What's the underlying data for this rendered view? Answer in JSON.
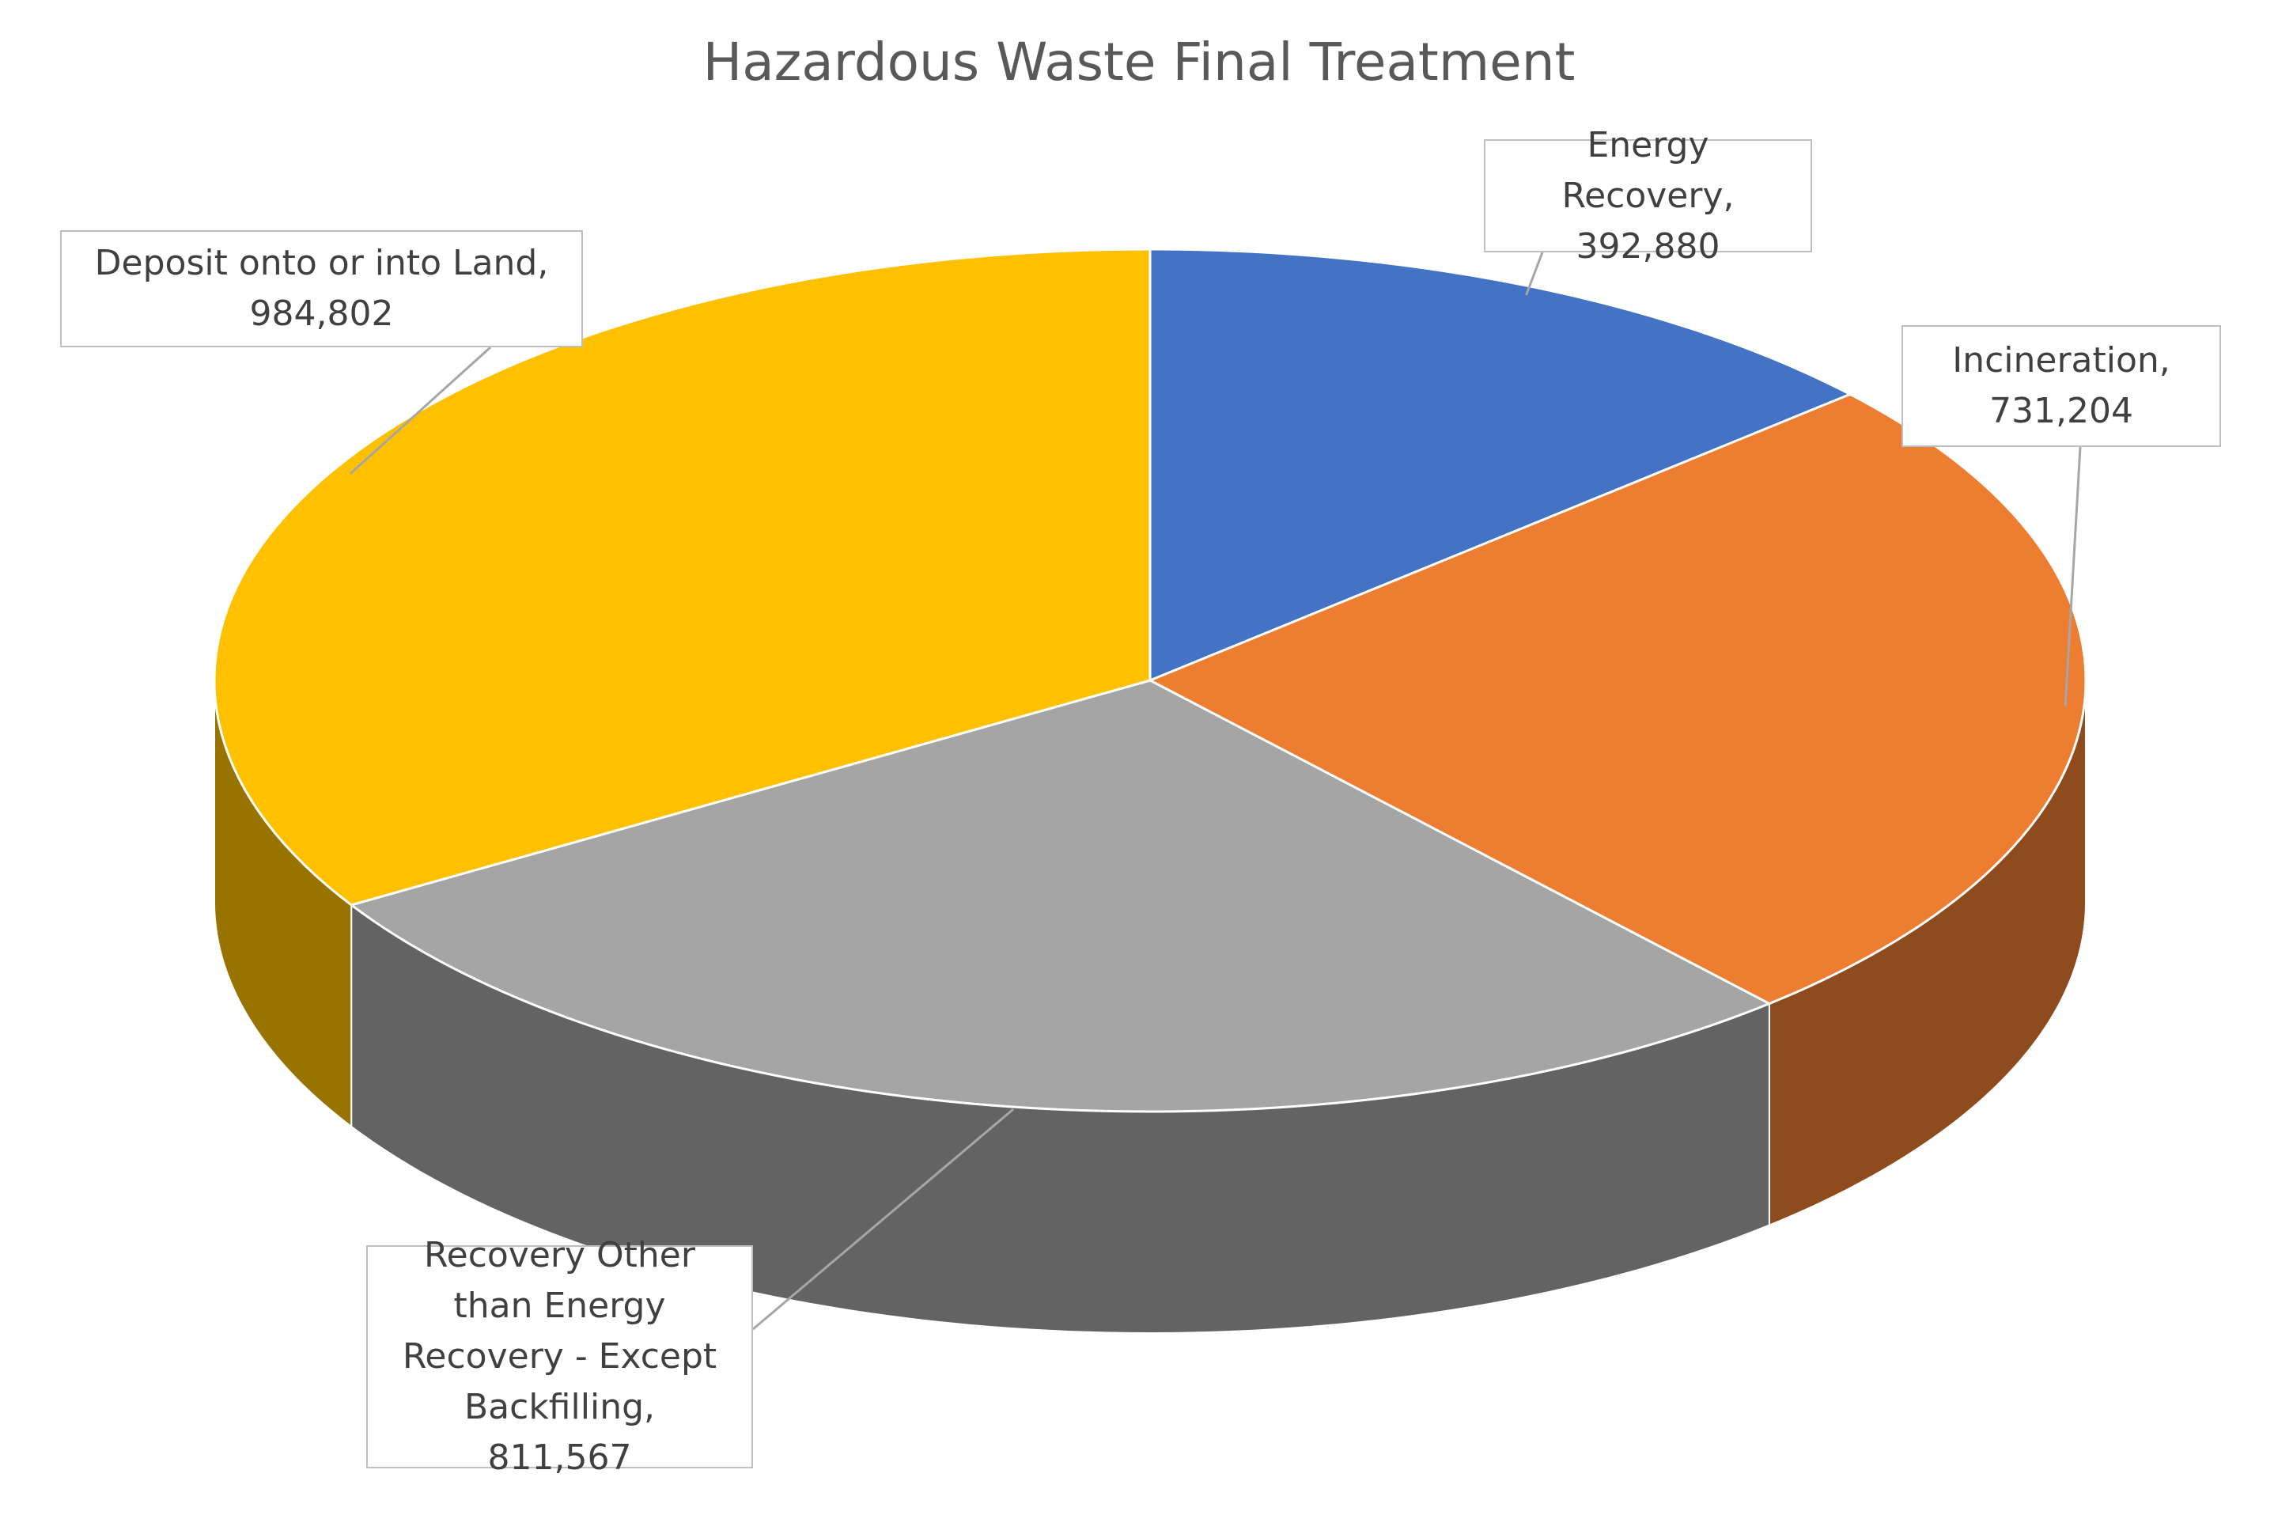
{
  "chart_data": {
    "type": "pie",
    "title": "Hazardous Waste Final Treatment",
    "categories": [
      "Energy Recovery",
      "Incineration",
      "Recovery Other than Energy Recovery - Except Backfilling",
      "Deposit onto or into Land"
    ],
    "values": [
      392880,
      731204,
      811567,
      984802
    ],
    "value_labels": [
      "392,880",
      "731,204",
      "811,567",
      "984,802"
    ],
    "colors": [
      "#4472c4",
      "#ed7d31",
      "#a5a5a5",
      "#ffc000"
    ]
  }
}
